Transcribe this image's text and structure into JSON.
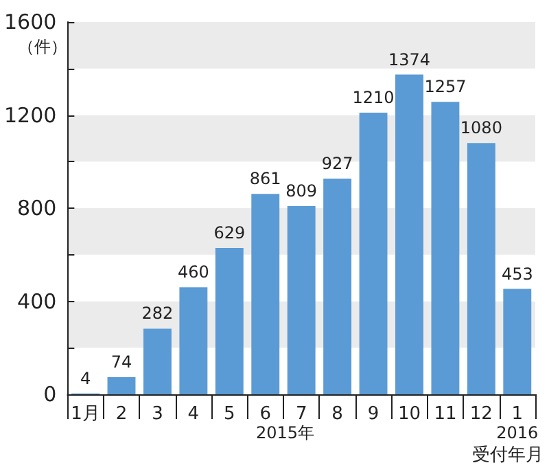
{
  "chart_data": {
    "type": "bar",
    "ylabel": "（件）",
    "xlabel": "受付年月",
    "categories": [
      "1月",
      "2",
      "3",
      "4",
      "5",
      "6",
      "7",
      "8",
      "9",
      "10",
      "11",
      "12",
      "1"
    ],
    "values": [
      4,
      74,
      282,
      460,
      629,
      861,
      809,
      927,
      1210,
      1374,
      1257,
      1080,
      453
    ],
    "color": "#5b9bd5",
    "data_labels": true,
    "ylim": [
      0,
      1600
    ],
    "yticks": [
      0,
      {
        "value": 200,
        "label": null
      },
      400,
      {
        "value": 600,
        "label": null
      },
      800,
      {
        "value": 1000,
        "label": null
      },
      1200,
      {
        "value": 1400,
        "label": null
      },
      1600
    ],
    "annotations": [
      "2015年",
      "2016"
    ]
  }
}
